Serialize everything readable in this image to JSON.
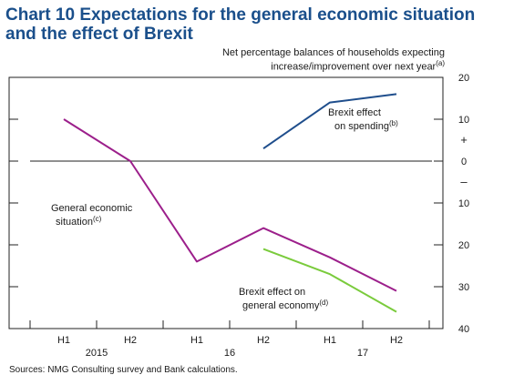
{
  "chart_title": {
    "number": "Chart 10",
    "text": "Expectations for the general economic situation and the effect of Brexit"
  },
  "subtitle": "Net percentage balances of households expecting increase/improvement over next year",
  "subtitle_note": "(a)",
  "source": "Sources: NMG Consulting survey and Bank calculations.",
  "colors": {
    "title": "#1a4f8b",
    "general": "#9c1f8b",
    "spending": "#1f4e8c",
    "economy": "#7acb3c"
  },
  "chart_data": {
    "type": "line",
    "x": [
      "2015 H1",
      "2015 H2",
      "2016 H1",
      "2016 H2",
      "2017 H1",
      "2017 H2"
    ],
    "x_tick_labels": [
      "H1",
      "H2",
      "H1",
      "H2",
      "H1",
      "H2"
    ],
    "x_year_labels": [
      "2015",
      "16",
      "17"
    ],
    "ylim": [
      -40,
      20
    ],
    "y_tick_labels": [
      "20",
      "10",
      "+",
      "0",
      "–",
      "10",
      "20",
      "30",
      "40"
    ],
    "series": [
      {
        "name": "General economic situation",
        "note": "(c)",
        "color": "#9c1f8b",
        "values": [
          10,
          0,
          -24,
          -16,
          -23,
          -31
        ]
      },
      {
        "name": "Brexit effect on spending",
        "note": "(b)",
        "color": "#1f4e8c",
        "values": [
          null,
          null,
          null,
          3,
          14,
          16
        ]
      },
      {
        "name": "Brexit effect on general economy",
        "note": "(d)",
        "color": "#7acb3c",
        "values": [
          null,
          null,
          null,
          -21,
          -27,
          -36
        ]
      }
    ],
    "grid": false
  }
}
